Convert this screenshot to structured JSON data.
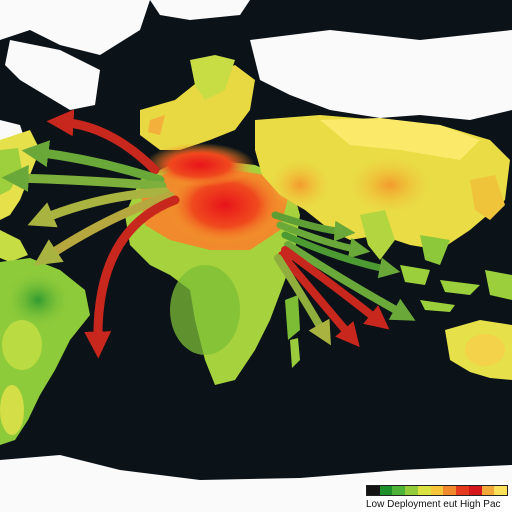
{
  "legend": {
    "label": "Low Deployment eut High Pac",
    "colors": [
      "#141414",
      "#1e8f2a",
      "#4fb33a",
      "#93cc3a",
      "#d9e240",
      "#f6c53a",
      "#f08a2c",
      "#e63a1e",
      "#d4171b",
      "#f2a93a",
      "#fbe25a"
    ]
  },
  "colors": {
    "ocean": "#0b1218",
    "ice": "#fafafa",
    "arrow_red": "#c8271d",
    "arrow_green": "#6aa83a",
    "arrow_olive": "#a9b340"
  }
}
